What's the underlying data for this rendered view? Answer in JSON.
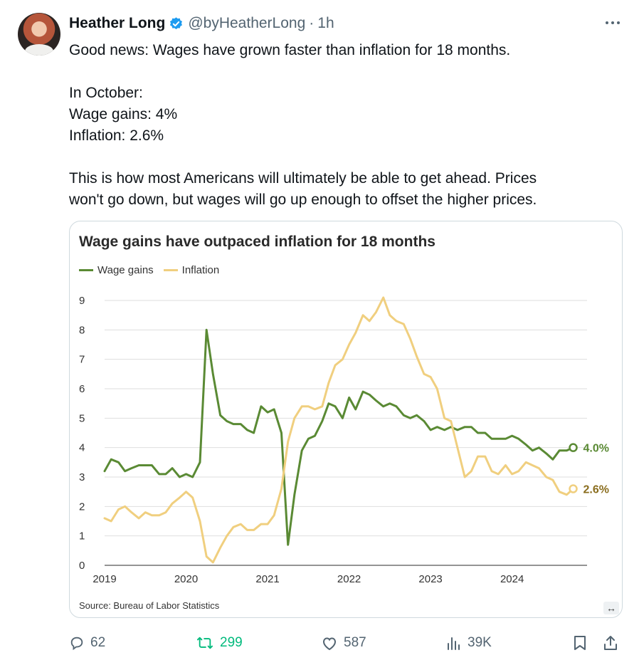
{
  "tweet": {
    "author_name": "Heather Long",
    "handle": "@byHeatherLong",
    "separator": "·",
    "time": "1h",
    "lines": [
      "Good news: Wages have grown faster than inflation for 18 months.",
      "",
      "In October:",
      "Wage gains: 4%",
      "Inflation: 2.6%",
      "",
      "This is how most Americans will ultimately be able to get ahead. Prices",
      "won't go down, but wages will go up enough to offset the higher prices."
    ]
  },
  "actions": {
    "replies": "62",
    "retweets": "299",
    "likes": "587",
    "views": "39K"
  },
  "icons": [
    "verified-badge-icon",
    "more-options-icon",
    "reply-icon",
    "retweet-icon",
    "like-icon",
    "views-icon",
    "bookmark-icon",
    "share-icon",
    "expand-icon"
  ],
  "colors": {
    "wage": "#5a8a34",
    "inflation": "#f0cf7f",
    "inflation_label": "#8a6d1e",
    "retweet": "#00ba7c",
    "verified": "#1d9bf0"
  },
  "chart_data": {
    "type": "line",
    "title": "Wage gains have outpaced inflation for 18 months",
    "source": "Source: Bureau of Labor Statistics",
    "ylim": [
      0,
      9
    ],
    "yticks": [
      "0",
      "1",
      "2",
      "3",
      "4",
      "5",
      "6",
      "7",
      "8",
      "9"
    ],
    "xlim": [
      2019.0,
      2024.92
    ],
    "xticks": [
      "2019",
      "2020",
      "2021",
      "2022",
      "2023",
      "2024"
    ],
    "grid": true,
    "legend": "top-left",
    "series": [
      {
        "name": "Wage gains",
        "end_label": "4.0%",
        "points": [
          [
            2019.0,
            3.2
          ],
          [
            2019.08,
            3.6
          ],
          [
            2019.17,
            3.5
          ],
          [
            2019.25,
            3.2
          ],
          [
            2019.33,
            3.3
          ],
          [
            2019.42,
            3.4
          ],
          [
            2019.5,
            3.4
          ],
          [
            2019.58,
            3.4
          ],
          [
            2019.67,
            3.1
          ],
          [
            2019.75,
            3.1
          ],
          [
            2019.83,
            3.3
          ],
          [
            2019.92,
            3.0
          ],
          [
            2020.0,
            3.1
          ],
          [
            2020.08,
            3.0
          ],
          [
            2020.17,
            3.5
          ],
          [
            2020.25,
            8.0
          ],
          [
            2020.33,
            6.5
          ],
          [
            2020.42,
            5.1
          ],
          [
            2020.5,
            4.9
          ],
          [
            2020.58,
            4.8
          ],
          [
            2020.67,
            4.8
          ],
          [
            2020.75,
            4.6
          ],
          [
            2020.83,
            4.5
          ],
          [
            2020.92,
            5.4
          ],
          [
            2021.0,
            5.2
          ],
          [
            2021.08,
            5.3
          ],
          [
            2021.17,
            4.5
          ],
          [
            2021.25,
            0.7
          ],
          [
            2021.33,
            2.4
          ],
          [
            2021.42,
            3.9
          ],
          [
            2021.5,
            4.3
          ],
          [
            2021.58,
            4.4
          ],
          [
            2021.67,
            4.9
          ],
          [
            2021.75,
            5.5
          ],
          [
            2021.83,
            5.4
          ],
          [
            2021.92,
            5.0
          ],
          [
            2022.0,
            5.7
          ],
          [
            2022.08,
            5.3
          ],
          [
            2022.17,
            5.9
          ],
          [
            2022.25,
            5.8
          ],
          [
            2022.33,
            5.6
          ],
          [
            2022.42,
            5.4
          ],
          [
            2022.5,
            5.5
          ],
          [
            2022.58,
            5.4
          ],
          [
            2022.67,
            5.1
          ],
          [
            2022.75,
            5.0
          ],
          [
            2022.83,
            5.1
          ],
          [
            2022.92,
            4.9
          ],
          [
            2023.0,
            4.6
          ],
          [
            2023.08,
            4.7
          ],
          [
            2023.17,
            4.6
          ],
          [
            2023.25,
            4.7
          ],
          [
            2023.33,
            4.6
          ],
          [
            2023.42,
            4.7
          ],
          [
            2023.5,
            4.7
          ],
          [
            2023.58,
            4.5
          ],
          [
            2023.67,
            4.5
          ],
          [
            2023.75,
            4.3
          ],
          [
            2023.83,
            4.3
          ],
          [
            2023.92,
            4.3
          ],
          [
            2024.0,
            4.4
          ],
          [
            2024.08,
            4.3
          ],
          [
            2024.17,
            4.1
          ],
          [
            2024.25,
            3.9
          ],
          [
            2024.33,
            4.0
          ],
          [
            2024.42,
            3.8
          ],
          [
            2024.5,
            3.6
          ],
          [
            2024.58,
            3.9
          ],
          [
            2024.67,
            3.9
          ],
          [
            2024.75,
            4.0
          ]
        ]
      },
      {
        "name": "Inflation",
        "end_label": "2.6%",
        "points": [
          [
            2019.0,
            1.6
          ],
          [
            2019.08,
            1.5
          ],
          [
            2019.17,
            1.9
          ],
          [
            2019.25,
            2.0
          ],
          [
            2019.33,
            1.8
          ],
          [
            2019.42,
            1.6
          ],
          [
            2019.5,
            1.8
          ],
          [
            2019.58,
            1.7
          ],
          [
            2019.67,
            1.7
          ],
          [
            2019.75,
            1.8
          ],
          [
            2019.83,
            2.1
          ],
          [
            2019.92,
            2.3
          ],
          [
            2020.0,
            2.5
          ],
          [
            2020.08,
            2.3
          ],
          [
            2020.17,
            1.5
          ],
          [
            2020.25,
            0.3
          ],
          [
            2020.33,
            0.1
          ],
          [
            2020.42,
            0.6
          ],
          [
            2020.5,
            1.0
          ],
          [
            2020.58,
            1.3
          ],
          [
            2020.67,
            1.4
          ],
          [
            2020.75,
            1.2
          ],
          [
            2020.83,
            1.2
          ],
          [
            2020.92,
            1.4
          ],
          [
            2021.0,
            1.4
          ],
          [
            2021.08,
            1.7
          ],
          [
            2021.17,
            2.6
          ],
          [
            2021.25,
            4.2
          ],
          [
            2021.33,
            5.0
          ],
          [
            2021.42,
            5.4
          ],
          [
            2021.5,
            5.4
          ],
          [
            2021.58,
            5.3
          ],
          [
            2021.67,
            5.4
          ],
          [
            2021.75,
            6.2
          ],
          [
            2021.83,
            6.8
          ],
          [
            2021.92,
            7.0
          ],
          [
            2022.0,
            7.5
          ],
          [
            2022.08,
            7.9
          ],
          [
            2022.17,
            8.5
          ],
          [
            2022.25,
            8.3
          ],
          [
            2022.33,
            8.6
          ],
          [
            2022.42,
            9.1
          ],
          [
            2022.5,
            8.5
          ],
          [
            2022.58,
            8.3
          ],
          [
            2022.67,
            8.2
          ],
          [
            2022.75,
            7.7
          ],
          [
            2022.83,
            7.1
          ],
          [
            2022.92,
            6.5
          ],
          [
            2023.0,
            6.4
          ],
          [
            2023.08,
            6.0
          ],
          [
            2023.17,
            5.0
          ],
          [
            2023.25,
            4.9
          ],
          [
            2023.33,
            4.0
          ],
          [
            2023.42,
            3.0
          ],
          [
            2023.5,
            3.2
          ],
          [
            2023.58,
            3.7
          ],
          [
            2023.67,
            3.7
          ],
          [
            2023.75,
            3.2
          ],
          [
            2023.83,
            3.1
          ],
          [
            2023.92,
            3.4
          ],
          [
            2024.0,
            3.1
          ],
          [
            2024.08,
            3.2
          ],
          [
            2024.17,
            3.5
          ],
          [
            2024.25,
            3.4
          ],
          [
            2024.33,
            3.3
          ],
          [
            2024.42,
            3.0
          ],
          [
            2024.5,
            2.9
          ],
          [
            2024.58,
            2.5
          ],
          [
            2024.67,
            2.4
          ],
          [
            2024.75,
            2.6
          ]
        ]
      }
    ]
  }
}
